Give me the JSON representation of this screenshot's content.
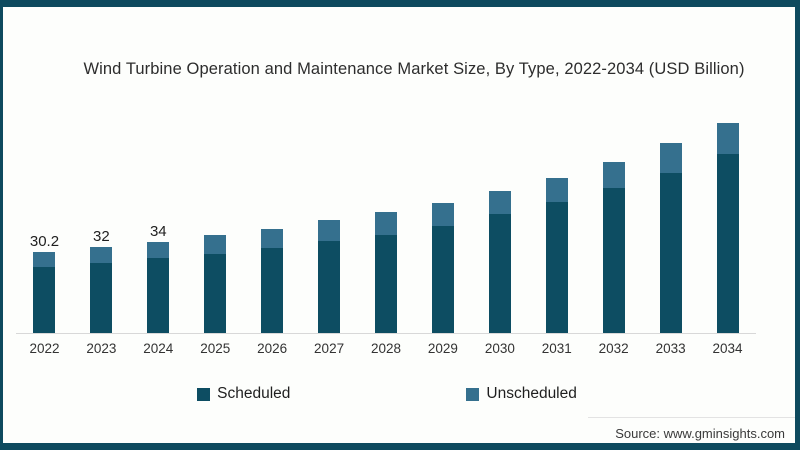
{
  "title": "Wind Turbine Operation and Maintenance Market Size, By Type, 2022-2034 (USD Billion)",
  "source": "Source: www.gminsights.com",
  "colors": {
    "frame_border": "#0e4a5e",
    "background": "#fdfefc",
    "scheduled": "#0d4d62",
    "unscheduled": "#35708e",
    "axis_line": "#d8d8d8"
  },
  "legend": [
    {
      "label": "Scheduled",
      "color": "#0d4d62"
    },
    {
      "label": "Unscheduled",
      "color": "#35708e"
    }
  ],
  "chart_data": {
    "type": "bar",
    "stacked": true,
    "title": "Wind Turbine Operation and Maintenance Market Size, By Type, 2022-2034 (USD Billion)",
    "xlabel": "",
    "ylabel": "USD Billion",
    "ylim": [
      0,
      85
    ],
    "grid": false,
    "legend_position": "bottom",
    "categories": [
      "2022",
      "2023",
      "2024",
      "2025",
      "2026",
      "2027",
      "2028",
      "2029",
      "2030",
      "2031",
      "2032",
      "2033",
      "2034"
    ],
    "series": [
      {
        "name": "Scheduled",
        "color": "#0d4d62",
        "values": [
          24.6,
          26.0,
          27.9,
          29.2,
          31.6,
          34.1,
          36.6,
          39.9,
          44.2,
          48.6,
          53.8,
          59.5,
          66.7
        ]
      },
      {
        "name": "Unscheduled",
        "color": "#35708e",
        "values": [
          5.6,
          6.0,
          6.1,
          6.9,
          7.2,
          7.8,
          8.4,
          8.5,
          8.7,
          9.1,
          9.5,
          11.3,
          11.7
        ]
      }
    ],
    "totals": [
      30.2,
      32,
      34,
      36.1,
      38.8,
      41.9,
      45.0,
      48.4,
      52.9,
      57.7,
      63.3,
      70.8,
      78.4
    ],
    "bar_labels": [
      "30.2",
      "32",
      "34",
      "",
      "",
      "",
      "",
      "",
      "",
      "",
      "",
      "",
      ""
    ]
  }
}
